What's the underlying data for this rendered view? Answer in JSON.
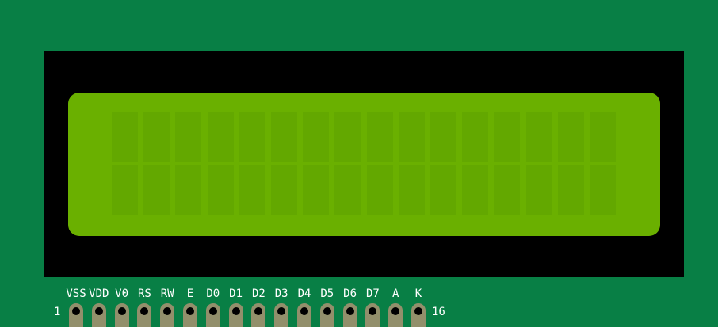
{
  "lcd": {
    "columns": 16,
    "rows": 2,
    "text_rows": [
      "",
      ""
    ]
  },
  "pins": [
    "VSS",
    "VDD",
    "V0",
    "RS",
    "RW",
    "E",
    "D0",
    "D1",
    "D2",
    "D3",
    "D4",
    "D5",
    "D6",
    "D7",
    "A",
    "K"
  ],
  "pin_first_number": "1",
  "pin_last_number": "16",
  "colors": {
    "board": "#087f45",
    "bezel": "#000000",
    "screen": "#6ab000",
    "cell": "#63a800",
    "pin": "#928f6b"
  }
}
